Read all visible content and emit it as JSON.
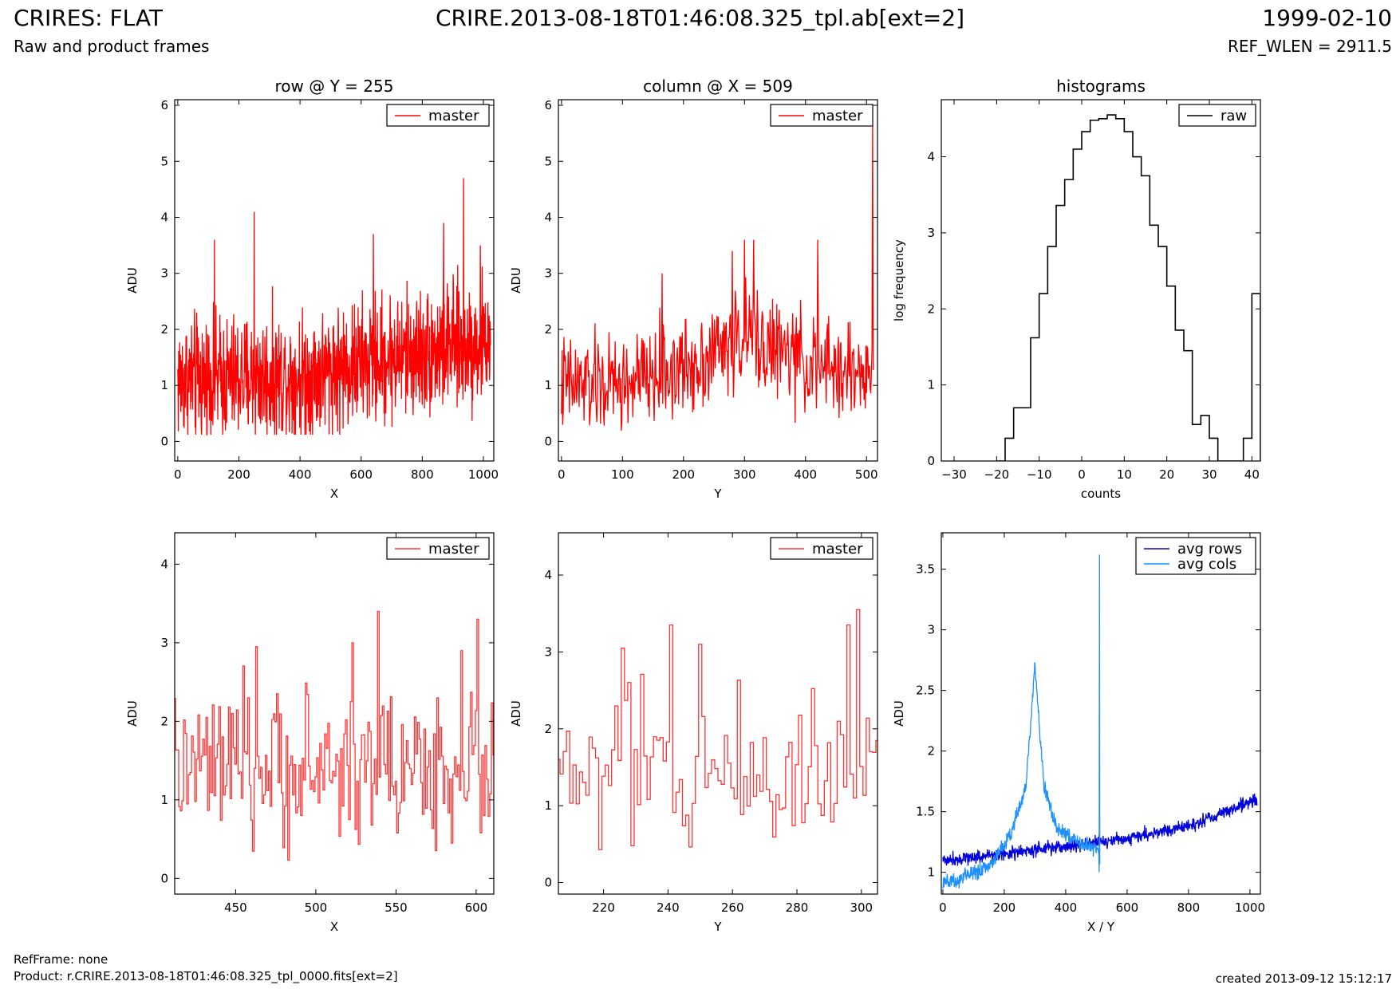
{
  "header": {
    "title_left": "CRIRES: FLAT",
    "title_center": "CRIRE.2013-08-18T01:46:08.325_tpl.ab[ext=2]",
    "title_right": "1999-02-10",
    "subtitle_left": "Raw and product frames",
    "subtitle_right": "REF_WLEN = 2911.5"
  },
  "footer": {
    "line1": "RefFrame: none",
    "line2": "Product: r.CRIRE.2013-08-18T01:46:08.325_tpl_0000.fits[ext=2]",
    "created": "created 2013-09-12 15:12:17"
  },
  "colors": {
    "master": "#ff0000",
    "master_zoom": "#ff3333",
    "raw": "#000000",
    "avg_rows": "#0000dd",
    "avg_cols": "#1e90ff"
  },
  "chart_data": [
    {
      "id": "row-full",
      "type": "line",
      "title": "row @ Y = 255",
      "xlabel": "X",
      "ylabel": "ADU",
      "xlim": [
        -10,
        1034
      ],
      "ylim": [
        -0.35,
        6.1
      ],
      "xticks": [
        0,
        200,
        400,
        600,
        800,
        1000
      ],
      "yticks": [
        0,
        1,
        2,
        3,
        4,
        5,
        6
      ],
      "legend": "top-right",
      "series": [
        {
          "name": "master",
          "color": "#ff0000",
          "x_range": [
            0,
            1023
          ],
          "n": 1024,
          "trend": {
            "x": [
              0,
              400,
              700,
              1023
            ],
            "y": [
              1.1,
              1.15,
              1.5,
              1.8
            ]
          },
          "noise": 0.7,
          "min": 0.12,
          "peaks": [
            [
              120,
              3.6
            ],
            [
              250,
              4.1
            ],
            [
              640,
              3.7
            ],
            [
              870,
              3.9
            ],
            [
              935,
              4.7
            ],
            [
              990,
              3.5
            ]
          ]
        }
      ]
    },
    {
      "id": "column-full",
      "type": "line",
      "title": "column @ X = 509",
      "xlabel": "Y",
      "ylabel": "ADU",
      "xlim": [
        -5,
        518
      ],
      "ylim": [
        -0.35,
        6.1
      ],
      "xticks": [
        0,
        100,
        200,
        300,
        400,
        500
      ],
      "yticks": [
        0,
        1,
        2,
        3,
        4,
        5,
        6
      ],
      "legend": "top-right",
      "series": [
        {
          "name": "master",
          "color": "#ff0000",
          "x_range": [
            0,
            511
          ],
          "n": 512,
          "trend": {
            "x": [
              0,
              100,
              200,
              300,
              420,
              511
            ],
            "y": [
              1.0,
              1.0,
              1.3,
              1.9,
              1.3,
              1.2
            ]
          },
          "noise": 0.55,
          "min": 0.12,
          "peaks": [
            [
              165,
              3.0
            ],
            [
              280,
              3.4
            ],
            [
              300,
              3.6
            ],
            [
              315,
              3.6
            ],
            [
              420,
              3.6
            ],
            [
              510,
              5.8
            ]
          ]
        }
      ]
    },
    {
      "id": "histograms",
      "type": "step",
      "title": "histograms",
      "xlabel": "counts",
      "ylabel": "log frequency",
      "xlim": [
        -33,
        42
      ],
      "ylim": [
        0,
        4.75
      ],
      "xticks": [
        -30,
        -20,
        -10,
        0,
        10,
        20,
        30,
        40
      ],
      "yticks": [
        0,
        1,
        2,
        3,
        4
      ],
      "legend": "top-right",
      "series": [
        {
          "name": "raw",
          "color": "#000000",
          "edges": [
            -20,
            -18,
            -16,
            -14,
            -12,
            -10,
            -8,
            -6,
            -4,
            -2,
            0,
            2,
            4,
            6,
            8,
            10,
            12,
            14,
            16,
            18,
            20,
            22,
            24,
            26,
            28,
            30,
            32,
            34,
            36,
            38,
            40,
            42
          ],
          "values": [
            0,
            0.3,
            0.7,
            0.7,
            1.62,
            2.2,
            2.82,
            3.36,
            3.7,
            4.1,
            4.33,
            4.48,
            4.5,
            4.55,
            4.5,
            4.33,
            4.0,
            3.75,
            3.1,
            2.82,
            2.3,
            1.72,
            1.45,
            0.48,
            0.6,
            0.3,
            0,
            0,
            0,
            0.3,
            2.2
          ]
        }
      ]
    },
    {
      "id": "row-zoom",
      "type": "step",
      "title": "",
      "xlabel": "X",
      "ylabel": "ADU",
      "xlim": [
        412,
        611
      ],
      "ylim": [
        -0.2,
        4.4
      ],
      "xticks": [
        450,
        500,
        550,
        600
      ],
      "yticks": [
        0,
        1,
        2,
        3,
        4
      ],
      "legend": "top-right",
      "series": [
        {
          "name": "master",
          "color": "#ff3333",
          "x_range": [
            412,
            611
          ],
          "n": 200,
          "trend": {
            "x": [
              412,
              611
            ],
            "y": [
              1.4,
              1.4
            ]
          },
          "noise": 0.6,
          "min": 0.15,
          "peaks": [
            [
              463,
              2.95
            ],
            [
              523,
              3.0
            ],
            [
              539,
              3.4
            ],
            [
              591,
              2.9
            ],
            [
              601,
              3.3
            ]
          ]
        }
      ]
    },
    {
      "id": "column-zoom",
      "type": "step",
      "title": "",
      "xlabel": "Y",
      "ylabel": "ADU",
      "xlim": [
        206,
        305
      ],
      "ylim": [
        -0.15,
        4.55
      ],
      "xticks": [
        220,
        240,
        260,
        280,
        300
      ],
      "yticks": [
        0,
        1,
        2,
        3,
        4
      ],
      "legend": "top-right",
      "series": [
        {
          "name": "master",
          "color": "#ff3333",
          "x_range": [
            206,
            305
          ],
          "n": 100,
          "trend": {
            "x": [
              206,
              305
            ],
            "y": [
              1.4,
              1.5
            ]
          },
          "noise": 0.7,
          "min": 0.2,
          "peaks": [
            [
              226,
              3.05
            ],
            [
              241,
              3.35
            ],
            [
              250,
              3.1
            ],
            [
              296,
              3.35
            ],
            [
              299,
              3.55
            ]
          ]
        }
      ]
    },
    {
      "id": "averages",
      "type": "line",
      "title": "",
      "xlabel": "X / Y",
      "ylabel": "ADU",
      "xlim": [
        -5,
        1034
      ],
      "ylim": [
        0.82,
        3.8
      ],
      "xticks": [
        0,
        200,
        400,
        600,
        800,
        1000
      ],
      "yticks": [
        1.0,
        1.5,
        2.0,
        2.5,
        3.0,
        3.5
      ],
      "legend": "top-right",
      "series": [
        {
          "name": "avg rows",
          "color": "#0000dd",
          "x_range": [
            0,
            1023
          ],
          "n": 1024,
          "trend": {
            "x": [
              0,
              300,
              600,
              800,
              1023
            ],
            "y": [
              1.1,
              1.18,
              1.28,
              1.38,
              1.6
            ]
          },
          "noise": 0.035,
          "min": 0.9,
          "peaks": []
        },
        {
          "name": "avg cols",
          "color": "#1e90ff",
          "x_range": [
            0,
            511
          ],
          "n": 512,
          "trend": {
            "x": [
              0,
              150,
              220,
              270,
              300,
              330,
              370,
              420,
              509,
              511
            ],
            "y": [
              0.9,
              1.05,
              1.3,
              1.7,
              2.7,
              1.7,
              1.38,
              1.28,
              1.18,
              1.1
            ]
          },
          "noise": 0.04,
          "min": 0.85,
          "peaks": [
            [
              510,
              3.62
            ],
            [
              509,
              1.0
            ]
          ]
        }
      ]
    }
  ]
}
